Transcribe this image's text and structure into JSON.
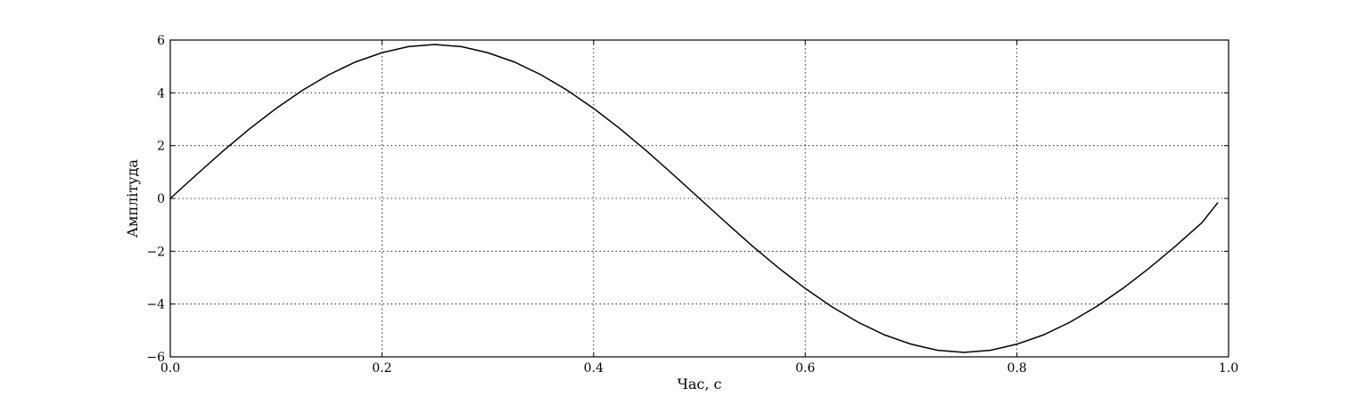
{
  "chart_data": {
    "type": "line",
    "title": "",
    "xlabel": "Час, с",
    "ylabel": "Амплітуда",
    "xlim": [
      0.0,
      1.0
    ],
    "ylim": [
      -6,
      6
    ],
    "grid": true,
    "x_ticks": [
      0.0,
      0.2,
      0.4,
      0.6,
      0.8,
      1.0
    ],
    "x_tick_labels": [
      "0.0",
      "0.2",
      "0.4",
      "0.6",
      "0.8",
      "1.0"
    ],
    "y_ticks": [
      -6,
      -4,
      -2,
      0,
      2,
      4,
      6
    ],
    "y_tick_labels": [
      "−6",
      "−4",
      "−2",
      "0",
      "2",
      "4",
      "6"
    ],
    "line_color": "#000000",
    "series": [
      {
        "x": [
          0.0,
          0.025,
          0.05,
          0.075,
          0.1,
          0.125,
          0.15,
          0.175,
          0.2,
          0.225,
          0.25,
          0.275,
          0.3,
          0.325,
          0.35,
          0.375,
          0.4,
          0.425,
          0.45,
          0.475,
          0.5,
          0.525,
          0.55,
          0.575,
          0.6,
          0.625,
          0.65,
          0.675,
          0.7,
          0.725,
          0.75,
          0.775,
          0.8,
          0.825,
          0.85,
          0.875,
          0.9,
          0.925,
          0.95,
          0.975,
          0.99
        ],
        "y": [
          0.0,
          0.91,
          1.8,
          2.64,
          3.41,
          4.1,
          4.69,
          5.17,
          5.52,
          5.75,
          5.83,
          5.75,
          5.52,
          5.17,
          4.69,
          4.1,
          3.41,
          2.64,
          1.8,
          0.91,
          0.0,
          -0.91,
          -1.8,
          -2.64,
          -3.41,
          -4.1,
          -4.69,
          -5.17,
          -5.52,
          -5.75,
          -5.83,
          -5.75,
          -5.52,
          -5.17,
          -4.69,
          -4.1,
          -3.41,
          -2.64,
          -1.8,
          -0.91,
          -0.15
        ]
      }
    ]
  }
}
